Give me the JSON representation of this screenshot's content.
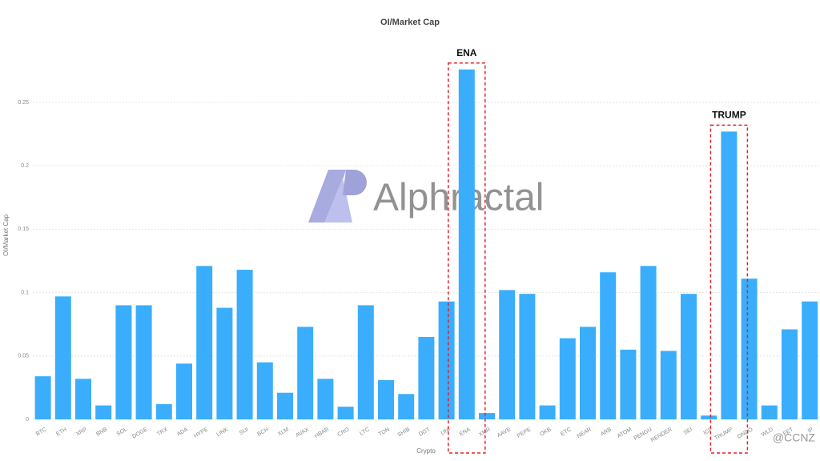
{
  "chart_data": {
    "type": "bar",
    "title": "OI/Market Cap",
    "y_label": "OI/Market Cap",
    "x_label": "Crypto",
    "categories": [
      "BTC",
      "ETH",
      "XRP",
      "BNB",
      "SOL",
      "DOGE",
      "TRX",
      "ADA",
      "HYPE",
      "LINK",
      "SUI",
      "BCH",
      "XLM",
      "AVAX",
      "HBAR",
      "CRO",
      "LTC",
      "TON",
      "SHIB",
      "DOT",
      "UNI",
      "ENA",
      "XMR",
      "AAVE",
      "PEPE",
      "OKB",
      "ETC",
      "NEAR",
      "ARB",
      "ATOM",
      "PENGU",
      "RENDER",
      "SEI",
      "ICP",
      "TRUMP",
      "ONDO",
      "WLD",
      "FET",
      "IP"
    ],
    "values": [
      0.034,
      0.097,
      0.032,
      0.011,
      0.09,
      0.09,
      0.012,
      0.044,
      0.121,
      0.088,
      0.118,
      0.045,
      0.021,
      0.073,
      0.032,
      0.01,
      0.09,
      0.031,
      0.02,
      0.065,
      0.093,
      0.276,
      0.005,
      0.102,
      0.099,
      0.011,
      0.064,
      0.073,
      0.116,
      0.055,
      0.121,
      0.054,
      0.099,
      0.003,
      0.227,
      0.111,
      0.011,
      0.071,
      0.093
    ],
    "color": "#3aaefc",
    "ylim": [
      0,
      0.29
    ],
    "yticks": [
      0,
      0.05,
      0.1,
      0.15,
      0.2,
      0.25
    ],
    "grid": true,
    "annotations": [
      "ENA",
      "TRUMP"
    ],
    "watermark": "Alphractal",
    "credit": "@CCNZ"
  }
}
